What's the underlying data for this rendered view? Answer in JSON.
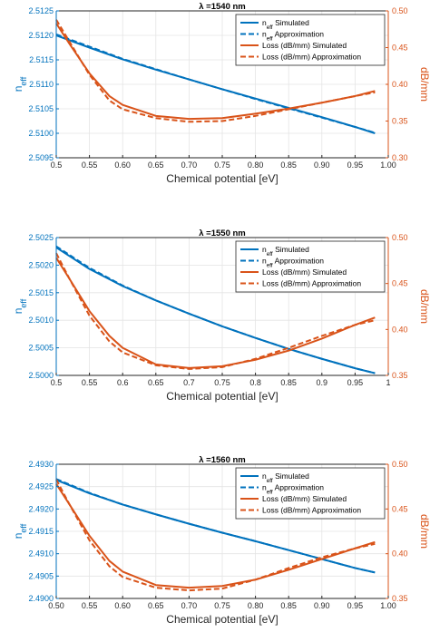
{
  "colors": {
    "blue": "#0072BD",
    "orange": "#D95319",
    "grid": "#e4e4e4",
    "axis": "#262626"
  },
  "legend_labels": [
    {
      "base": "n",
      "sub": "eff",
      "rest": " Simulated"
    },
    {
      "base": "n",
      "sub": "eff",
      "rest": " Approximation"
    },
    {
      "base": "Loss (dB/mm) Simulated",
      "sub": "",
      "rest": ""
    },
    {
      "base": "Loss (dB/mm) Approximation",
      "sub": "",
      "rest": ""
    }
  ],
  "chart_data": [
    {
      "type": "line",
      "title": "λ =1540 nm",
      "xlabel": "Chemical potential [eV]",
      "ylabel_left": {
        "base": "n",
        "sub": "eff"
      },
      "ylabel_right": "dB/mm",
      "xlim": [
        0.5,
        1.0
      ],
      "x_ticks": [
        "0.5",
        "0.55",
        "0.60",
        "0.65",
        "0.70",
        "0.75",
        "0.80",
        "0.85",
        "0.90",
        "0.95",
        "1.00"
      ],
      "ylim_left": [
        2.5095,
        2.5125
      ],
      "y_ticks_left": [
        "2.5095",
        "2.5100",
        "2.5105",
        "2.5110",
        "2.5115",
        "2.5120",
        "2.5125"
      ],
      "ylim_right": [
        0.3,
        0.5
      ],
      "y_ticks_right": [
        "0.30",
        "0.35",
        "0.40",
        "0.45",
        "0.50"
      ],
      "grid": true,
      "legend_position": "top-right",
      "series": [
        {
          "name": "n_eff Simulated",
          "axis": "left",
          "style": "solid",
          "x": [
            0.5,
            0.55,
            0.6,
            0.65,
            0.7,
            0.75,
            0.8,
            0.85,
            0.9,
            0.95,
            0.98
          ],
          "y": [
            2.512,
            2.51175,
            2.51151,
            2.5113,
            2.5111,
            2.5109,
            2.51071,
            2.51052,
            2.51033,
            2.51013,
            2.51
          ]
        },
        {
          "name": "n_eff Approximation",
          "axis": "left",
          "style": "dashed",
          "x": [
            0.5,
            0.55,
            0.6,
            0.65,
            0.7,
            0.75,
            0.8,
            0.85,
            0.9,
            0.95,
            0.98
          ],
          "y": [
            2.51202,
            2.51177,
            2.51152,
            2.51131,
            2.5111,
            2.5109,
            2.5107,
            2.51051,
            2.51032,
            2.51013,
            2.51001
          ]
        },
        {
          "name": "Loss (dB/mm) Simulated",
          "axis": "right",
          "style": "solid",
          "x": [
            0.5,
            0.52,
            0.55,
            0.58,
            0.6,
            0.65,
            0.7,
            0.75,
            0.8,
            0.85,
            0.9,
            0.95,
            0.98
          ],
          "y": [
            0.483,
            0.455,
            0.415,
            0.384,
            0.372,
            0.357,
            0.353,
            0.354,
            0.36,
            0.367,
            0.375,
            0.384,
            0.391
          ]
        },
        {
          "name": "Loss (dB/mm) Approximation",
          "axis": "right",
          "style": "dashed",
          "x": [
            0.5,
            0.52,
            0.55,
            0.58,
            0.6,
            0.65,
            0.7,
            0.75,
            0.8,
            0.85,
            0.9,
            0.95,
            0.98
          ],
          "y": [
            0.488,
            0.458,
            0.413,
            0.378,
            0.366,
            0.354,
            0.349,
            0.35,
            0.357,
            0.366,
            0.375,
            0.384,
            0.389
          ]
        }
      ]
    },
    {
      "type": "line",
      "title": "λ =1550 nm",
      "xlabel": "Chemical potential [eV]",
      "ylabel_left": {
        "base": "n",
        "sub": "eff"
      },
      "ylabel_right": "dB/mm",
      "xlim": [
        0.5,
        1.0
      ],
      "x_ticks": [
        "0.5",
        "0.55",
        "0.6",
        "0.65",
        "0.7",
        "0.75",
        "0.8",
        "0.85",
        "0.9",
        "0.95",
        "1"
      ],
      "ylim_left": [
        2.5,
        2.5025
      ],
      "y_ticks_left": [
        "2.5000",
        "2.5005",
        "2.5010",
        "2.5015",
        "2.5020",
        "2.5025"
      ],
      "ylim_right": [
        0.35,
        0.5
      ],
      "y_ticks_right": [
        "0.35",
        "0.40",
        "0.45",
        "0.50"
      ],
      "grid": true,
      "legend_position": "top-right",
      "series": [
        {
          "name": "n_eff Simulated",
          "axis": "left",
          "style": "solid",
          "x": [
            0.5,
            0.55,
            0.6,
            0.65,
            0.7,
            0.75,
            0.8,
            0.85,
            0.9,
            0.95,
            0.98
          ],
          "y": [
            2.50232,
            2.50193,
            2.50162,
            2.50136,
            2.50112,
            2.50089,
            2.50068,
            2.50048,
            2.5003,
            2.50013,
            2.50004
          ]
        },
        {
          "name": "n_eff Approximation",
          "axis": "left",
          "style": "dashed",
          "x": [
            0.5,
            0.55,
            0.6,
            0.65,
            0.7,
            0.75,
            0.8,
            0.85,
            0.9,
            0.95,
            0.98
          ],
          "y": [
            2.50234,
            2.50195,
            2.50163,
            2.50136,
            2.50112,
            2.50089,
            2.50068,
            2.50048,
            2.5003,
            2.50013,
            2.50004
          ]
        },
        {
          "name": "Loss (dB/mm) Simulated",
          "axis": "right",
          "style": "solid",
          "x": [
            0.5,
            0.52,
            0.55,
            0.58,
            0.6,
            0.65,
            0.7,
            0.75,
            0.8,
            0.85,
            0.9,
            0.95,
            0.98
          ],
          "y": [
            0.478,
            0.455,
            0.42,
            0.393,
            0.38,
            0.362,
            0.358,
            0.36,
            0.367,
            0.377,
            0.39,
            0.405,
            0.413
          ]
        },
        {
          "name": "Loss (dB/mm) Approximation",
          "axis": "right",
          "style": "dashed",
          "x": [
            0.5,
            0.52,
            0.55,
            0.58,
            0.6,
            0.65,
            0.7,
            0.75,
            0.8,
            0.85,
            0.9,
            0.95,
            0.98
          ],
          "y": [
            0.483,
            0.455,
            0.415,
            0.387,
            0.375,
            0.361,
            0.357,
            0.359,
            0.368,
            0.38,
            0.393,
            0.405,
            0.41
          ]
        }
      ]
    },
    {
      "type": "line",
      "title": "λ =1560 nm",
      "xlabel": "Chemical potential [eV]",
      "ylabel_left": {
        "base": "n",
        "sub": "eff"
      },
      "ylabel_right": "dB/mm",
      "xlim": [
        0.5,
        1.0
      ],
      "x_ticks": [
        "0.50",
        "0.55",
        "0.60",
        "0.65",
        "0.70",
        "0.75",
        "0.80",
        "0.85",
        "0.90",
        "0.95",
        "1.00"
      ],
      "ylim_left": [
        2.49,
        2.493
      ],
      "y_ticks_left": [
        "2.4900",
        "2.4905",
        "2.4910",
        "2.4915",
        "2.4920",
        "2.4925",
        "2.4930"
      ],
      "ylim_right": [
        0.35,
        0.5
      ],
      "y_ticks_right": [
        "0.35",
        "0.40",
        "0.45",
        "0.50"
      ],
      "grid": true,
      "legend_position": "top-right",
      "series": [
        {
          "name": "n_eff Simulated",
          "axis": "left",
          "style": "solid",
          "x": [
            0.5,
            0.55,
            0.6,
            0.65,
            0.7,
            0.75,
            0.8,
            0.85,
            0.9,
            0.95,
            0.98
          ],
          "y": [
            2.49265,
            2.49235,
            2.4921,
            2.49188,
            2.49167,
            2.49147,
            2.49128,
            2.49108,
            2.49088,
            2.49068,
            2.49058
          ]
        },
        {
          "name": "n_eff Approximation",
          "axis": "left",
          "style": "dashed",
          "x": [
            0.5,
            0.55,
            0.6,
            0.65,
            0.7,
            0.75,
            0.8,
            0.85,
            0.9,
            0.95,
            0.98
          ],
          "y": [
            2.49267,
            2.49236,
            2.4921,
            2.49188,
            2.49167,
            2.49147,
            2.49128,
            2.49108,
            2.49088,
            2.49068,
            2.49058
          ]
        },
        {
          "name": "Loss (dB/mm) Simulated",
          "axis": "right",
          "style": "solid",
          "x": [
            0.5,
            0.52,
            0.55,
            0.58,
            0.6,
            0.65,
            0.7,
            0.75,
            0.8,
            0.85,
            0.9,
            0.95,
            0.98
          ],
          "y": [
            0.478,
            0.455,
            0.42,
            0.392,
            0.38,
            0.365,
            0.362,
            0.364,
            0.371,
            0.382,
            0.394,
            0.406,
            0.413
          ]
        },
        {
          "name": "Loss (dB/mm) Approximation",
          "axis": "right",
          "style": "dashed",
          "x": [
            0.5,
            0.52,
            0.55,
            0.58,
            0.6,
            0.65,
            0.7,
            0.75,
            0.8,
            0.85,
            0.9,
            0.95,
            0.98
          ],
          "y": [
            0.483,
            0.455,
            0.415,
            0.386,
            0.374,
            0.362,
            0.359,
            0.361,
            0.371,
            0.384,
            0.396,
            0.406,
            0.411
          ]
        }
      ]
    }
  ]
}
